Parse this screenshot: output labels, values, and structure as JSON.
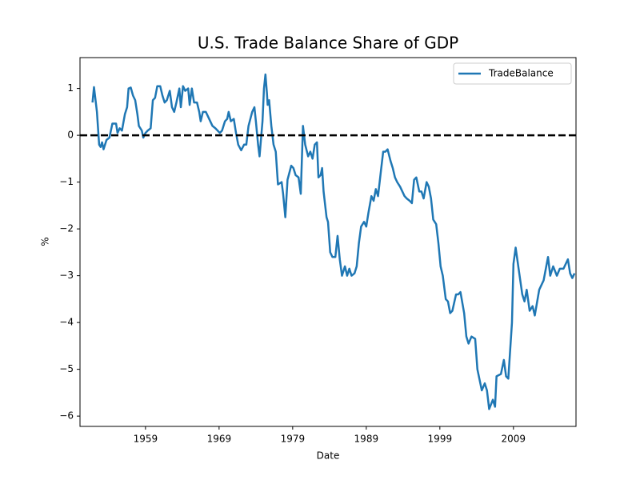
{
  "chart_data": {
    "type": "line",
    "title": "U.S. Trade Balance Share of GDP",
    "x_label": "Date",
    "y_label": "%",
    "x": [
      1951.8,
      1952.0,
      1952.4,
      1952.7,
      1952.9,
      1953.1,
      1953.3,
      1953.7,
      1954.1,
      1954.5,
      1955.0,
      1955.2,
      1955.5,
      1955.8,
      1956.2,
      1956.5,
      1956.7,
      1957.0,
      1957.3,
      1957.6,
      1957.9,
      1958.1,
      1958.5,
      1958.7,
      1959.0,
      1959.3,
      1959.7,
      1960.0,
      1960.3,
      1960.6,
      1961.0,
      1961.3,
      1961.6,
      1961.9,
      1962.3,
      1962.6,
      1962.9,
      1963.2,
      1963.6,
      1963.8,
      1964.1,
      1964.4,
      1964.8,
      1965.0,
      1965.3,
      1965.6,
      1966.0,
      1966.3,
      1966.5,
      1966.8,
      1967.2,
      1967.5,
      1967.8,
      1968.1,
      1968.5,
      1968.8,
      1969.1,
      1969.4,
      1969.8,
      1970.1,
      1970.3,
      1970.6,
      1971.0,
      1971.3,
      1971.6,
      1972.0,
      1972.4,
      1972.7,
      1973.0,
      1973.5,
      1973.8,
      1974.0,
      1974.3,
      1974.5,
      1974.9,
      1975.1,
      1975.3,
      1975.5,
      1975.6,
      1975.8,
      1976.1,
      1976.4,
      1976.7,
      1977.0,
      1977.5,
      1977.7,
      1978.0,
      1978.3,
      1978.8,
      1979.1,
      1979.4,
      1979.8,
      1980.1,
      1980.4,
      1980.7,
      1981.1,
      1981.4,
      1981.7,
      1982.0,
      1982.3,
      1982.5,
      1982.8,
      1983.0,
      1983.2,
      1983.6,
      1983.8,
      1984.1,
      1984.4,
      1984.8,
      1985.1,
      1985.4,
      1985.7,
      1986.1,
      1986.4,
      1986.7,
      1987.0,
      1987.4,
      1987.7,
      1988.0,
      1988.3,
      1988.7,
      1989.0,
      1989.3,
      1989.7,
      1990.0,
      1990.3,
      1990.6,
      1991.0,
      1991.3,
      1991.6,
      1991.9,
      1992.3,
      1992.6,
      1992.9,
      1993.2,
      1993.6,
      1993.9,
      1994.2,
      1994.5,
      1994.9,
      1995.2,
      1995.5,
      1995.8,
      1996.2,
      1996.5,
      1996.8,
      1997.2,
      1997.5,
      1997.8,
      1998.1,
      1998.5,
      1998.8,
      1999.1,
      1999.4,
      1999.8,
      2000.1,
      2000.4,
      2000.7,
      2001.2,
      2001.5,
      2001.8,
      2002.3,
      2002.6,
      2002.9,
      2003.3,
      2003.8,
      2004.1,
      2004.7,
      2005.1,
      2005.4,
      2005.7,
      2006.2,
      2006.5,
      2006.7,
      2007.3,
      2007.7,
      2008.0,
      2008.3,
      2008.8,
      2009.0,
      2009.3,
      2009.7,
      2010.2,
      2010.5,
      2010.8,
      2011.2,
      2011.6,
      2011.9,
      2012.5,
      2013.1,
      2013.7,
      2014.0,
      2014.4,
      2014.9,
      2015.3,
      2015.8,
      2016.4,
      2016.7,
      2017.0,
      2017.3
    ],
    "series": [
      {
        "name": "TradeBalance",
        "color": "#1f77b4",
        "values": [
          0.7,
          1.03,
          0.5,
          -0.2,
          -0.25,
          -0.15,
          -0.3,
          -0.1,
          -0.05,
          0.25,
          0.25,
          0.05,
          0.15,
          0.1,
          0.45,
          0.6,
          1.0,
          1.02,
          0.85,
          0.75,
          0.45,
          0.2,
          0.1,
          -0.05,
          0.05,
          0.1,
          0.15,
          0.75,
          0.8,
          1.05,
          1.05,
          0.85,
          0.7,
          0.75,
          0.95,
          0.6,
          0.5,
          0.7,
          1.0,
          0.6,
          1.05,
          0.95,
          1.0,
          0.65,
          1.0,
          0.7,
          0.7,
          0.5,
          0.3,
          0.5,
          0.5,
          0.4,
          0.3,
          0.2,
          0.15,
          0.1,
          0.05,
          0.1,
          0.3,
          0.35,
          0.5,
          0.3,
          0.35,
          0.05,
          -0.2,
          -0.32,
          -0.2,
          -0.2,
          0.2,
          0.5,
          0.6,
          0.3,
          -0.2,
          -0.45,
          0.3,
          1.0,
          1.3,
          0.9,
          0.65,
          0.75,
          0.2,
          -0.2,
          -0.35,
          -1.05,
          -1.0,
          -1.25,
          -1.75,
          -0.95,
          -0.65,
          -0.7,
          -0.85,
          -0.9,
          -1.25,
          0.2,
          -0.2,
          -0.45,
          -0.35,
          -0.5,
          -0.2,
          -0.15,
          -0.9,
          -0.85,
          -0.7,
          -1.2,
          -1.75,
          -1.85,
          -2.5,
          -2.6,
          -2.6,
          -2.15,
          -2.65,
          -3.0,
          -2.8,
          -3.0,
          -2.85,
          -3.0,
          -2.95,
          -2.8,
          -2.3,
          -1.95,
          -1.85,
          -1.95,
          -1.65,
          -1.3,
          -1.4,
          -1.15,
          -1.3,
          -0.75,
          -0.35,
          -0.35,
          -0.3,
          -0.55,
          -0.7,
          -0.9,
          -1.0,
          -1.1,
          -1.2,
          -1.3,
          -1.35,
          -1.4,
          -1.45,
          -0.95,
          -0.9,
          -1.2,
          -1.2,
          -1.35,
          -1.0,
          -1.1,
          -1.35,
          -1.8,
          -1.9,
          -2.3,
          -2.8,
          -3.0,
          -3.5,
          -3.55,
          -3.8,
          -3.75,
          -3.4,
          -3.4,
          -3.35,
          -3.8,
          -4.3,
          -4.45,
          -4.3,
          -4.35,
          -5.0,
          -5.45,
          -5.3,
          -5.45,
          -5.85,
          -5.65,
          -5.8,
          -5.15,
          -5.1,
          -4.8,
          -5.15,
          -5.2,
          -4.0,
          -2.75,
          -2.4,
          -2.85,
          -3.4,
          -3.55,
          -3.3,
          -3.75,
          -3.65,
          -3.85,
          -3.3,
          -3.1,
          -2.6,
          -3.0,
          -2.8,
          -3.0,
          -2.85,
          -2.85,
          -2.65,
          -2.95,
          -3.05,
          -2.95
        ]
      }
    ],
    "xlim": [
      1950.1,
      2017.5
    ],
    "xticks": [
      1959,
      1969,
      1979,
      1989,
      1999,
      2009
    ],
    "ylim": [
      -6.22,
      1.66
    ],
    "yticks": [
      {
        "value": -6,
        "label": "−6"
      },
      {
        "value": -5,
        "label": "−5"
      },
      {
        "value": -4,
        "label": "−4"
      },
      {
        "value": -3,
        "label": "−3"
      },
      {
        "value": -2,
        "label": "−2"
      },
      {
        "value": -1,
        "label": "−1"
      },
      0,
      1
    ],
    "hlines": [
      0
    ],
    "legend": "upper right"
  }
}
